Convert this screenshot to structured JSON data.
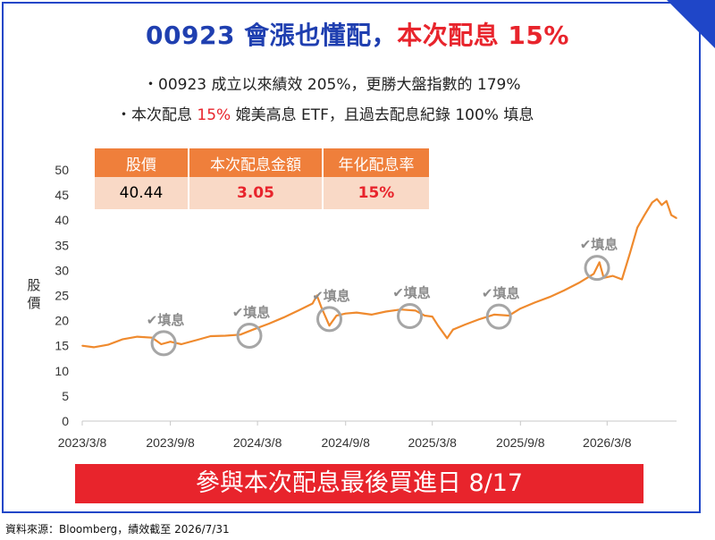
{
  "title": {
    "part1": "00923 會漲也懂配，",
    "part2": "本次配息 15%"
  },
  "bullets": [
    {
      "text": "・00923 成立以來績效 205%，更勝大盤指數的 179%"
    },
    {
      "pre": "・本次配息 ",
      "highlight": "15%",
      "post": " 媲美高息 ETF，且過去配息紀錄 100% 填息"
    }
  ],
  "table": {
    "headers": [
      "股價",
      "本次配息金額",
      "年化配息率"
    ],
    "values": [
      "40.44",
      "3.05",
      "15%"
    ]
  },
  "fill_label": "✔填息",
  "banner": "參與本次配息最後買進日 8/17",
  "source": "資料來源：Bloomberg，績效截至 2026/7/31",
  "colors": {
    "brand_blue": "#1f46c8",
    "title_blue": "#1f3fb0",
    "accent_red": "#e8242c",
    "line_orange": "#ef8a2e",
    "table_header": "#ef7f3b",
    "table_cell": "#f9d9c6"
  },
  "chart_data": {
    "type": "line",
    "ylabel": "股價",
    "xlabel": "",
    "ylim": [
      0,
      50
    ],
    "yticks": [
      "0",
      "5",
      "10",
      "15",
      "20",
      "25",
      "30",
      "35",
      "40",
      "45",
      "50"
    ],
    "xticks": [
      "2023/3/8",
      "2023/9/8",
      "2024/3/8",
      "2024/9/8",
      "2025/3/8",
      "2025/9/8",
      "2026/3/8"
    ],
    "grid": false,
    "series": [
      {
        "points": [
          [
            "2023/3/8",
            15.0
          ],
          [
            "2023/4/1",
            14.7
          ],
          [
            "2023/5/1",
            15.2
          ],
          [
            "2023/6/1",
            16.3
          ],
          [
            "2023/7/1",
            16.8
          ],
          [
            "2023/8/1",
            16.6
          ],
          [
            "2023/8/20",
            15.3
          ],
          [
            "2023/9/8",
            15.8
          ],
          [
            "2023/10/1",
            15.3
          ],
          [
            "2023/11/1",
            16.1
          ],
          [
            "2023/12/1",
            16.9
          ],
          [
            "2024/1/1",
            17.0
          ],
          [
            "2024/2/1",
            17.2
          ],
          [
            "2024/3/1",
            18.3
          ],
          [
            "2024/4/1",
            19.4
          ],
          [
            "2024/5/1",
            20.6
          ],
          [
            "2024/6/1",
            22.0
          ],
          [
            "2024/7/1",
            23.4
          ],
          [
            "2024/7/10",
            25.0
          ],
          [
            "2024/7/20",
            22.5
          ],
          [
            "2024/8/5",
            19.0
          ],
          [
            "2024/8/20",
            21.0
          ],
          [
            "2024/9/8",
            21.4
          ],
          [
            "2024/10/1",
            21.6
          ],
          [
            "2024/11/1",
            21.2
          ],
          [
            "2024/12/1",
            21.8
          ],
          [
            "2025/1/1",
            22.2
          ],
          [
            "2025/2/1",
            22.0
          ],
          [
            "2025/2/20",
            21.0
          ],
          [
            "2025/3/8",
            20.8
          ],
          [
            "2025/3/20",
            19.0
          ],
          [
            "2025/4/8",
            16.5
          ],
          [
            "2025/4/20",
            18.2
          ],
          [
            "2025/5/15",
            19.2
          ],
          [
            "2025/6/15",
            20.3
          ],
          [
            "2025/7/15",
            21.2
          ],
          [
            "2025/8/15",
            21.0
          ],
          [
            "2025/9/8",
            22.4
          ],
          [
            "2025/10/8",
            23.6
          ],
          [
            "2025/11/8",
            24.7
          ],
          [
            "2025/12/8",
            26.0
          ],
          [
            "2026/1/8",
            27.5
          ],
          [
            "2026/2/8",
            29.3
          ],
          [
            "2026/2/20",
            31.6
          ],
          [
            "2026/3/1",
            28.5
          ],
          [
            "2026/3/20",
            28.9
          ],
          [
            "2026/4/8",
            28.2
          ],
          [
            "2026/4/25",
            33.5
          ],
          [
            "2026/5/10",
            38.5
          ],
          [
            "2026/5/25",
            41.0
          ],
          [
            "2026/6/10",
            43.5
          ],
          [
            "2026/6/20",
            44.2
          ],
          [
            "2026/6/30",
            43.0
          ],
          [
            "2026/7/10",
            43.8
          ],
          [
            "2026/7/20",
            41.0
          ],
          [
            "2026/7/31",
            40.4
          ]
        ]
      }
    ],
    "annotations": [
      {
        "date": "2023/8/25",
        "value": 15.5,
        "text": "✔填息"
      },
      {
        "date": "2024/2/20",
        "value": 17.0,
        "text": "✔填息"
      },
      {
        "date": "2024/8/5",
        "value": 20.3,
        "text": "✔填息"
      },
      {
        "date": "2025/1/20",
        "value": 20.9,
        "text": "✔填息"
      },
      {
        "date": "2025/7/25",
        "value": 20.8,
        "text": "✔填息"
      },
      {
        "date": "2026/2/15",
        "value": 30.5,
        "text": "✔填息"
      }
    ]
  }
}
